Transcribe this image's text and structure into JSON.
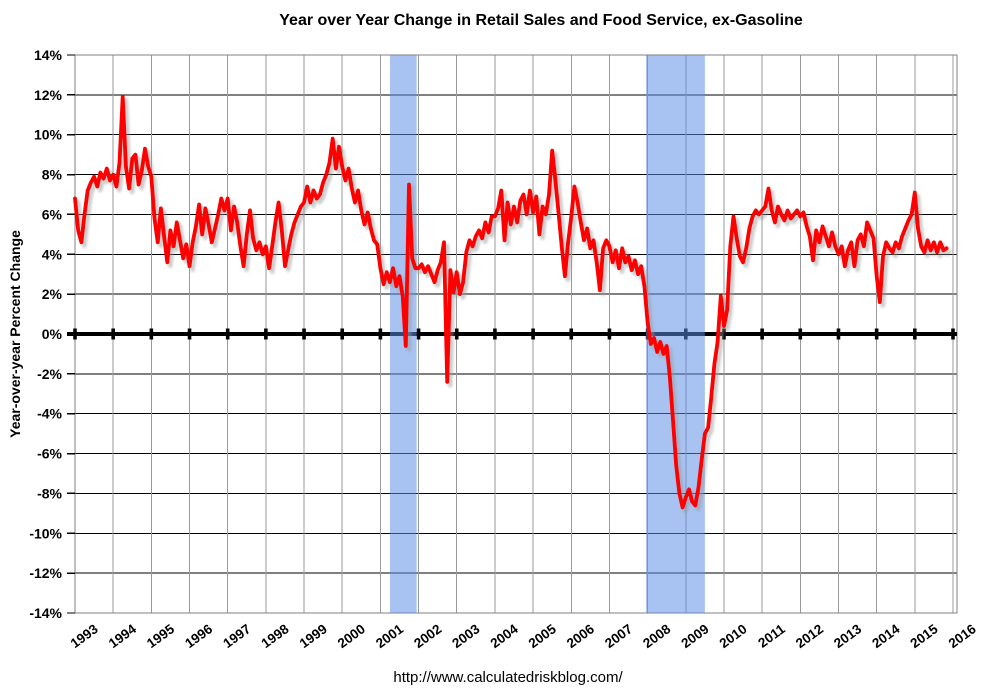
{
  "page": {
    "title": "Year over Year Change in Retail Sales and Food Service, ex-Gasoline",
    "footer_url": "http://www.calculatedriskblog.com/"
  },
  "chart_data": {
    "type": "line",
    "title": "Year over Year Change in Retail Sales and Food Service, ex-Gasoline",
    "xlabel": "",
    "ylabel": "Year-over-year Percent Change",
    "ylim": [
      -14,
      14
    ],
    "ytick_step": 2,
    "ytick_suffix": "%",
    "xlim": [
      1993,
      2016
    ],
    "xticks": [
      1993,
      1994,
      1995,
      1996,
      1997,
      1998,
      1999,
      2000,
      2001,
      2002,
      2003,
      2004,
      2005,
      2006,
      2007,
      2008,
      2009,
      2010,
      2011,
      2012,
      2013,
      2014,
      2015,
      2016
    ],
    "grid": "on",
    "legend": "none",
    "source_label": "http://www.calculatedriskblog.com/",
    "zero_line": true,
    "recession_bands": [
      {
        "label": "2001 recession",
        "start": 2001.25,
        "end": 2001.95
      },
      {
        "label": "2007-2009 recession",
        "start": 2007.96,
        "end": 2009.5
      }
    ],
    "band_color": "#5B8DE5",
    "band_opacity": 0.53,
    "colors": {
      "line": "#FF0000",
      "line_shadow": "#999999",
      "h_grid": "#000000",
      "v_grid": "#9A9A9A",
      "border": "#808080",
      "band_visible": "#A9C7EB",
      "background": "#FFFFFF",
      "text": "#000000"
    },
    "series": [
      {
        "name": "Retail Sales and Food Service ex-Gasoline, year-over-year percent change",
        "color": "#FF0000",
        "frequency": "monthly",
        "start": "1993-01",
        "end": "2015-11",
        "values": [
          6.8,
          5.2,
          4.6,
          6.0,
          7.2,
          7.6,
          7.9,
          7.4,
          8.1,
          7.8,
          8.3,
          7.7,
          8.0,
          7.4,
          8.6,
          11.9,
          8.4,
          7.3,
          8.8,
          9.0,
          7.5,
          8.2,
          9.3,
          8.4,
          7.9,
          5.8,
          4.6,
          6.3,
          4.9,
          3.6,
          5.2,
          4.4,
          5.6,
          4.7,
          3.8,
          4.5,
          3.4,
          4.6,
          5.4,
          6.5,
          5.0,
          6.3,
          5.5,
          4.6,
          5.3,
          6.0,
          6.8,
          6.2,
          6.8,
          5.2,
          6.4,
          5.6,
          4.4,
          3.4,
          5.0,
          6.2,
          4.8,
          4.2,
          4.6,
          4.0,
          4.4,
          3.3,
          4.4,
          5.6,
          6.6,
          5.2,
          3.4,
          4.2,
          5.0,
          5.6,
          6.0,
          6.4,
          6.6,
          7.4,
          6.6,
          7.2,
          6.8,
          7.0,
          7.6,
          8.0,
          8.6,
          9.8,
          8.3,
          9.4,
          8.4,
          7.7,
          8.3,
          7.3,
          6.6,
          7.2,
          6.2,
          5.5,
          6.1,
          5.3,
          4.7,
          4.5,
          3.3,
          2.5,
          3.1,
          2.6,
          3.3,
          2.4,
          2.9,
          1.9,
          -0.6,
          7.5,
          3.8,
          3.3,
          3.3,
          3.5,
          3.1,
          3.4,
          3.0,
          2.6,
          3.2,
          3.6,
          4.6,
          -2.4,
          3.2,
          2.1,
          3.1,
          2.0,
          2.6,
          4.1,
          4.7,
          4.4,
          4.9,
          5.2,
          4.8,
          5.6,
          5.1,
          5.9,
          5.9,
          6.3,
          7.2,
          4.7,
          6.6,
          5.5,
          6.4,
          5.6,
          6.7,
          7.0,
          6.0,
          7.2,
          6.1,
          6.9,
          5.0,
          6.4,
          6.0,
          7.0,
          9.2,
          7.7,
          6.1,
          4.4,
          2.9,
          4.6,
          5.9,
          7.4,
          6.6,
          5.6,
          4.7,
          5.3,
          4.3,
          4.7,
          3.6,
          2.2,
          4.3,
          4.7,
          4.4,
          3.6,
          4.2,
          3.3,
          4.3,
          3.6,
          3.9,
          3.2,
          3.7,
          3.0,
          3.4,
          2.4,
          0.6,
          -0.5,
          -0.2,
          -0.9,
          -0.4,
          -1.0,
          -0.6,
          -2.2,
          -4.4,
          -6.6,
          -8.0,
          -8.7,
          -8.2,
          -7.8,
          -8.4,
          -8.6,
          -7.7,
          -6.3,
          -5.0,
          -4.7,
          -3.2,
          -1.5,
          -0.4,
          1.9,
          0.4,
          1.2,
          4.4,
          5.9,
          4.8,
          3.9,
          3.6,
          4.3,
          5.3,
          5.9,
          6.2,
          6.0,
          6.2,
          6.4,
          7.3,
          6.2,
          5.6,
          6.4,
          6.0,
          5.7,
          6.2,
          5.8,
          6.0,
          6.2,
          5.9,
          6.1,
          5.4,
          4.9,
          3.7,
          5.2,
          4.6,
          5.4,
          4.9,
          4.4,
          5.1,
          4.4,
          4.0,
          4.4,
          3.4,
          4.2,
          4.6,
          3.4,
          4.7,
          5.0,
          4.4,
          5.6,
          5.2,
          4.8,
          2.9,
          1.6,
          3.9,
          4.6,
          4.3,
          4.1,
          4.6,
          4.3,
          4.9,
          5.3,
          5.7,
          6.0,
          7.1,
          5.3,
          4.4,
          4.1,
          4.7,
          4.2,
          4.6,
          4.1,
          4.6,
          4.2,
          4.3
        ]
      }
    ]
  }
}
